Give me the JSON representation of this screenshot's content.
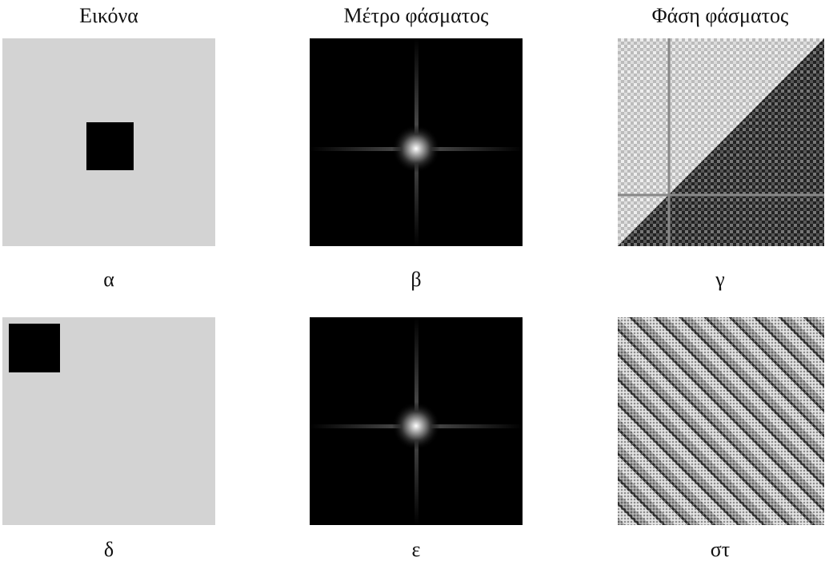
{
  "columns": [
    "Εικόνα",
    "Μέτρο φάσματος",
    "Φάση φάσματος"
  ],
  "panels": [
    "α",
    "β",
    "γ",
    "δ",
    "ε",
    "στ"
  ]
}
